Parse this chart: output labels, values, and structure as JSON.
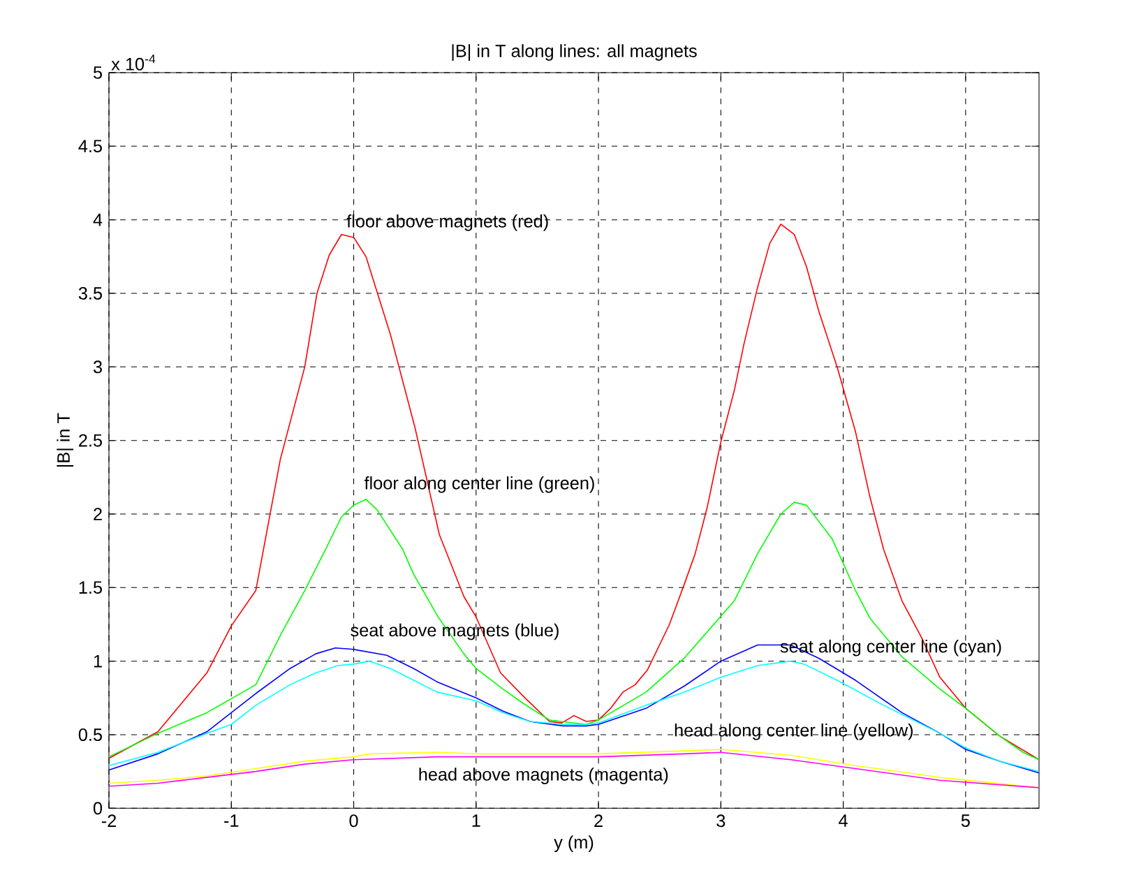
{
  "chart_data": {
    "type": "line",
    "title": "|B| in T along lines: all magnets",
    "xlabel": "y (m)",
    "ylabel": "|B| in T",
    "xlim": [
      -2,
      5.6
    ],
    "ylim": [
      0,
      5
    ],
    "xticks": [
      -2,
      -1,
      0,
      1,
      2,
      3,
      4,
      5
    ],
    "yticks": [
      0,
      0.5,
      1,
      1.5,
      2,
      2.5,
      3,
      3.5,
      4,
      4.5,
      5
    ],
    "grid": true,
    "marker": "none",
    "line_style": "solid",
    "annotations": [
      "x 10$^{-4}$",
      "floor above magnets (red)",
      "floor along center line (green)",
      "seat above magnets (blue)",
      "seat along center line (cyan)",
      "head along center line (yellow)",
      "head above magnets (magenta)"
    ],
    "series": [
      {
        "color": "#ff0000",
        "x": [
          -2,
          -1.6,
          -1.2,
          -1.0,
          -0.8,
          -0.6,
          -0.4,
          -0.3,
          -0.2,
          -0.1,
          0,
          0.1,
          0.3,
          0.5,
          0.7,
          0.9,
          1.0,
          1.2,
          1.4,
          1.6,
          1.7,
          1.8,
          1.9,
          2.0,
          2.1,
          2.2,
          2.3,
          2.4,
          2.58,
          2.7,
          2.79,
          2.89,
          3.0,
          3.11,
          3.19,
          3.3,
          3.4,
          3.49,
          3.6,
          3.7,
          3.8,
          3.95,
          4.1,
          4.22,
          4.33,
          4.48,
          4.64,
          4.79,
          5.0,
          5.28,
          5.6
        ],
        "values": [
          0.34,
          0.52,
          0.92,
          1.24,
          1.48,
          2.37,
          3.0,
          3.5,
          3.76,
          3.9,
          3.88,
          3.75,
          3.22,
          2.59,
          1.86,
          1.44,
          1.3,
          0.92,
          0.75,
          0.59,
          0.58,
          0.63,
          0.59,
          0.6,
          0.68,
          0.79,
          0.84,
          0.94,
          1.25,
          1.52,
          1.73,
          2.05,
          2.49,
          2.84,
          3.16,
          3.54,
          3.84,
          3.97,
          3.9,
          3.68,
          3.38,
          3.0,
          2.56,
          2.11,
          1.76,
          1.41,
          1.16,
          0.89,
          0.68,
          0.49,
          0.33
        ]
      },
      {
        "color": "#00ff00",
        "x": [
          -2,
          -1.6,
          -1.2,
          -0.8,
          -0.59,
          -0.4,
          -0.23,
          -0.1,
          0,
          0.1,
          0.19,
          0.4,
          0.49,
          0.69,
          0.9,
          1.0,
          1.22,
          1.39,
          1.6,
          1.9,
          2.0,
          2.39,
          2.7,
          3.11,
          3.3,
          3.49,
          3.6,
          3.7,
          3.91,
          4.1,
          4.22,
          4.48,
          4.79,
          5.0,
          5.28,
          5.47,
          5.6
        ],
        "values": [
          0.35,
          0.51,
          0.65,
          0.84,
          1.19,
          1.48,
          1.76,
          1.98,
          2.06,
          2.1,
          2.03,
          1.76,
          1.59,
          1.3,
          1.05,
          0.95,
          0.81,
          0.71,
          0.6,
          0.57,
          0.6,
          0.79,
          1.02,
          1.41,
          1.73,
          2.0,
          2.08,
          2.06,
          1.83,
          1.48,
          1.29,
          1.03,
          0.81,
          0.68,
          0.49,
          0.38,
          0.33
        ]
      },
      {
        "color": "#0000ff",
        "x": [
          -2,
          -1.6,
          -1.2,
          -1.0,
          -0.8,
          -0.52,
          -0.31,
          -0.15,
          0,
          0.27,
          0.49,
          0.68,
          1.0,
          1.22,
          1.44,
          1.71,
          1.9,
          2.0,
          2.39,
          2.7,
          3.0,
          3.3,
          3.57,
          3.8,
          4.1,
          4.48,
          4.79,
          5.0,
          5.28,
          5.6
        ],
        "values": [
          0.26,
          0.37,
          0.52,
          0.65,
          0.78,
          0.95,
          1.05,
          1.09,
          1.08,
          1.04,
          0.95,
          0.86,
          0.75,
          0.66,
          0.59,
          0.56,
          0.56,
          0.57,
          0.68,
          0.83,
          1.0,
          1.11,
          1.11,
          1.02,
          0.87,
          0.65,
          0.51,
          0.4,
          0.32,
          0.24
        ]
      },
      {
        "color": "#00ffff",
        "x": [
          -2,
          -1.6,
          -1.2,
          -1.0,
          -0.8,
          -0.52,
          -0.31,
          -0.13,
          0,
          0.13,
          0.3,
          0.49,
          0.68,
          1.0,
          1.22,
          1.44,
          1.71,
          1.9,
          2.0,
          2.39,
          2.7,
          3.0,
          3.3,
          3.57,
          3.68,
          3.95,
          4.33,
          4.79,
          5.0,
          5.28,
          5.6
        ],
        "values": [
          0.29,
          0.38,
          0.51,
          0.57,
          0.7,
          0.84,
          0.92,
          0.97,
          0.98,
          1.0,
          0.95,
          0.87,
          0.79,
          0.73,
          0.65,
          0.59,
          0.57,
          0.57,
          0.58,
          0.7,
          0.79,
          0.89,
          0.97,
          1.0,
          0.98,
          0.87,
          0.7,
          0.51,
          0.41,
          0.32,
          0.25
        ]
      },
      {
        "color": "#ffff00",
        "x": [
          -2,
          -1.6,
          -1.2,
          -0.8,
          -0.4,
          0,
          0.13,
          0.68,
          1.0,
          1.9,
          2.0,
          2.7,
          3.0,
          3.57,
          4.1,
          4.79,
          5.6
        ],
        "values": [
          0.17,
          0.19,
          0.22,
          0.27,
          0.32,
          0.35,
          0.37,
          0.38,
          0.37,
          0.37,
          0.37,
          0.39,
          0.4,
          0.36,
          0.29,
          0.21,
          0.14
        ]
      },
      {
        "color": "#ff00ff",
        "x": [
          -2,
          -1.6,
          -1.2,
          -0.8,
          -0.4,
          0,
          0.68,
          1.9,
          2.0,
          2.7,
          3.0,
          3.57,
          4.1,
          4.79,
          5.6
        ],
        "values": [
          0.15,
          0.17,
          0.21,
          0.25,
          0.3,
          0.33,
          0.35,
          0.35,
          0.35,
          0.37,
          0.38,
          0.33,
          0.27,
          0.19,
          0.14
        ]
      }
    ]
  }
}
